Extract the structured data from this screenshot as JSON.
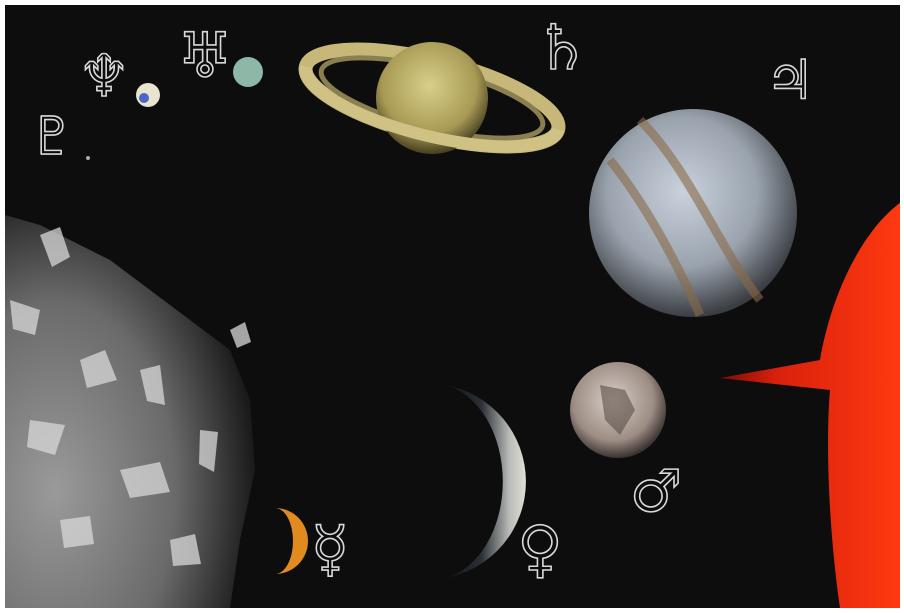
{
  "symbols": [
    "♇",
    "♆",
    "♅",
    "♄",
    "♃",
    "♂",
    "♀",
    "☿"
  ]
}
